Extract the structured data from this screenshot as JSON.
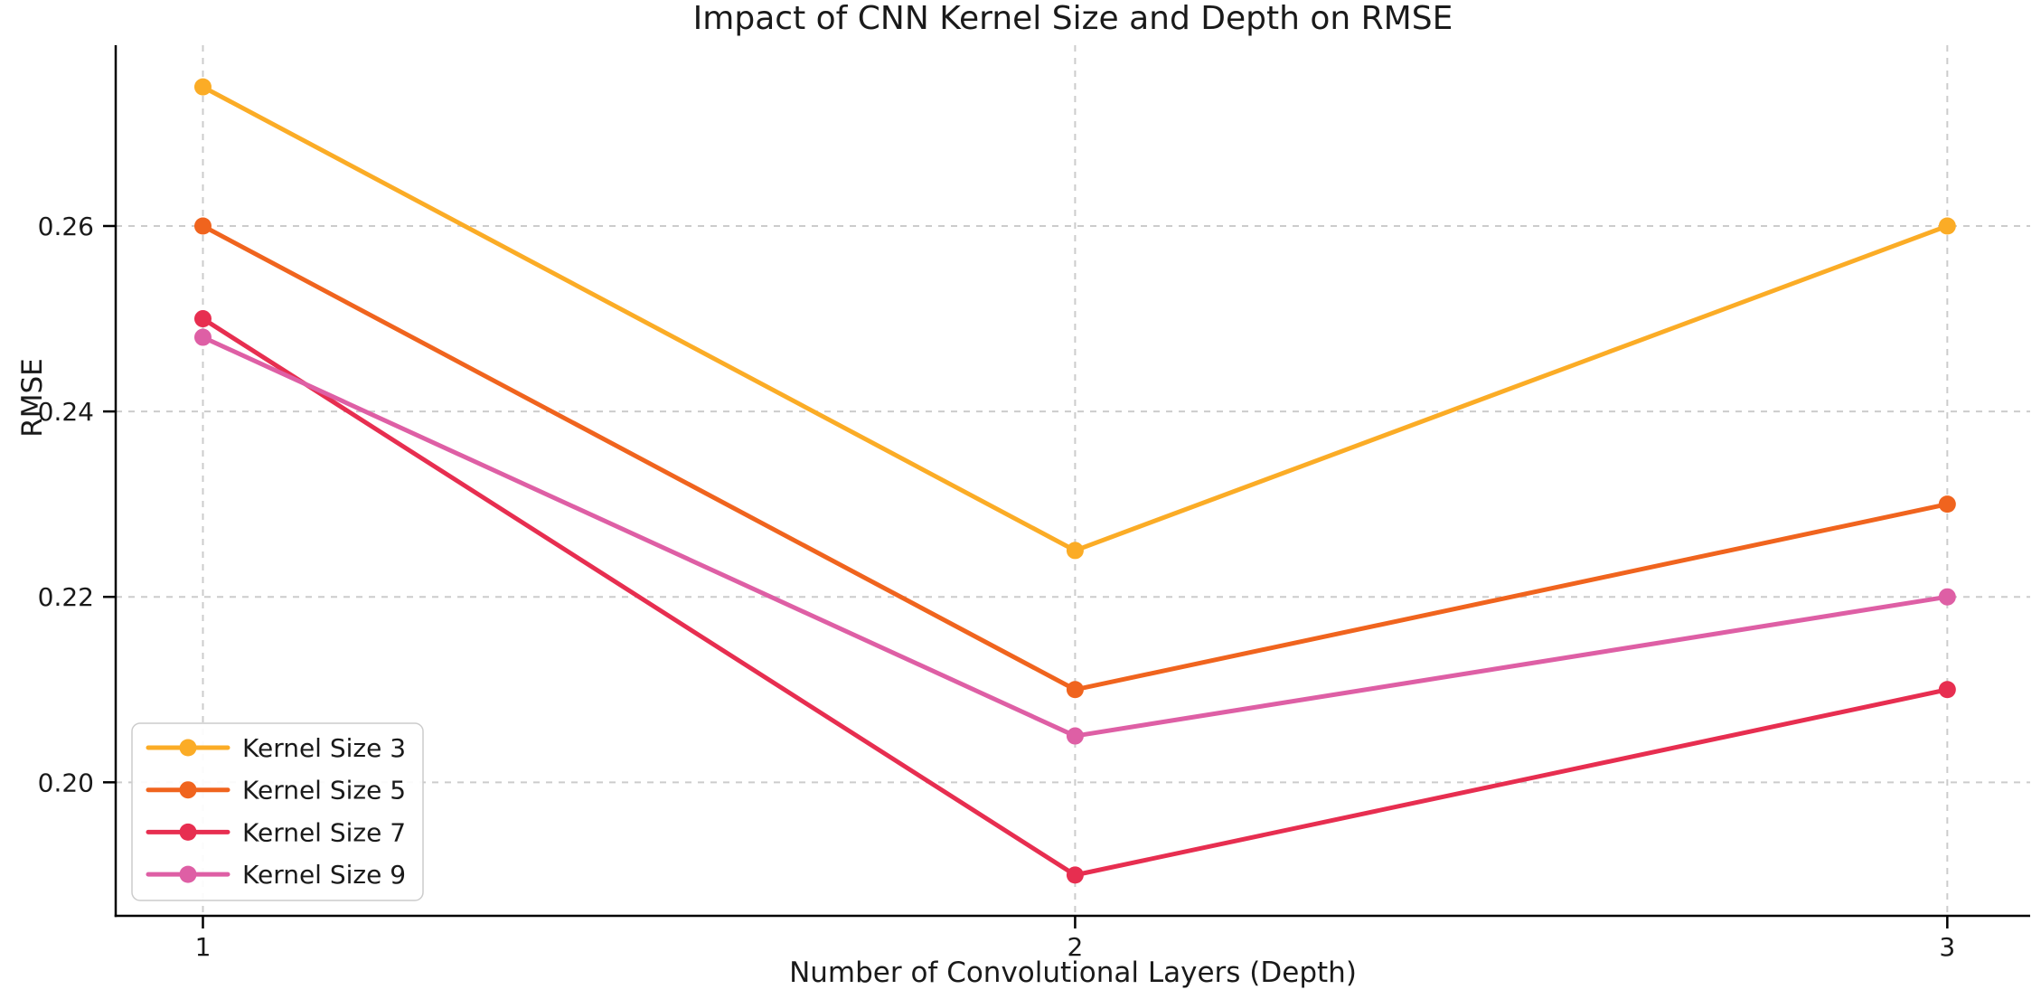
{
  "chart_data": {
    "type": "line",
    "title": "Impact of CNN Kernel Size and Depth on RMSE",
    "xlabel": "Number of Convolutional Layers (Depth)",
    "ylabel": "RMSE",
    "x": [
      1,
      2,
      3
    ],
    "xtick_labels": [
      "1",
      "2",
      "3"
    ],
    "yticks": [
      0.2,
      0.22,
      0.24,
      0.26
    ],
    "ytick_labels": [
      "0.20",
      "0.22",
      "0.24",
      "0.26"
    ],
    "xlim": [
      0.9,
      3.095
    ],
    "ylim": [
      0.1856,
      0.2795
    ],
    "grid": true,
    "grid_style": "dashed",
    "legend_position": "lower-left",
    "series": [
      {
        "name": "Kernel Size 3",
        "color": "#FBAC26",
        "values": [
          0.275,
          0.225,
          0.26
        ]
      },
      {
        "name": "Kernel Size 5",
        "color": "#F0641E",
        "values": [
          0.26,
          0.21,
          0.23
        ]
      },
      {
        "name": "Kernel Size 7",
        "color": "#E72E50",
        "values": [
          0.25,
          0.19,
          0.21
        ]
      },
      {
        "name": "Kernel Size 9",
        "color": "#DE5FA5",
        "values": [
          0.248,
          0.205,
          0.22
        ]
      }
    ]
  },
  "colors": {
    "background": "#ffffff",
    "grid": "#cccccc",
    "spine": "#000000",
    "text": "#1a1a1a",
    "legend_border": "#cccccc",
    "legend_background": "#ffffff"
  }
}
